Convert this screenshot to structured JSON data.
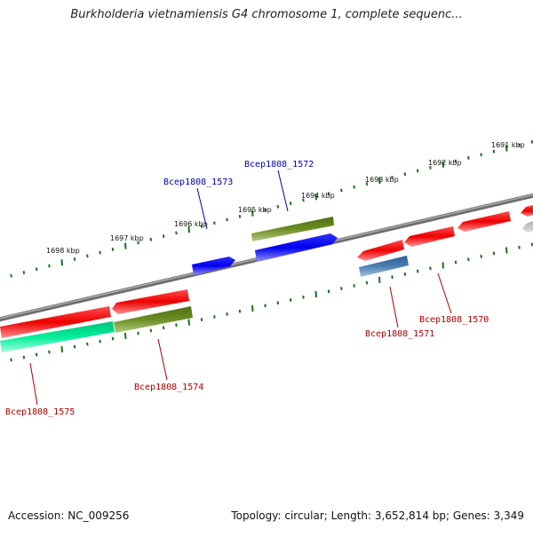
{
  "header": {
    "title": "Burkholderia vietnamiensis G4 chromosome 1, complete sequenc..."
  },
  "footer": {
    "accession": "Accession: NC_009256",
    "topology": "Topology: circular; Length: 3,652,814 bp; Genes: 3,349"
  },
  "scale": {
    "ticks": [
      "1691 kbp",
      "1692 kbp",
      "1693 kbp",
      "1694 kbp",
      "1695 kbp",
      "1696 kbp",
      "1697 kbp",
      "1698 kbp"
    ]
  },
  "genes": {
    "forward_labels": [
      "Bcep1808_1572",
      "Bcep1808_1573"
    ],
    "reverse_labels": [
      "Bcep1808_1570",
      "Bcep1808_1571",
      "Bcep1808_1574",
      "Bcep1808_1575"
    ]
  },
  "colors": {
    "backbone": "#808080",
    "forward_label": "#0000aa",
    "reverse_label": "#aa0000",
    "tick": "#1e6e1e",
    "red_gene": "#ee0000",
    "blue_gene": "#0000ee",
    "olive_gene": "#6b8e23",
    "cyan_gene": "#00dd99",
    "steel_gene": "#4a7fb0",
    "grey_gene": "#c0c0c0"
  }
}
